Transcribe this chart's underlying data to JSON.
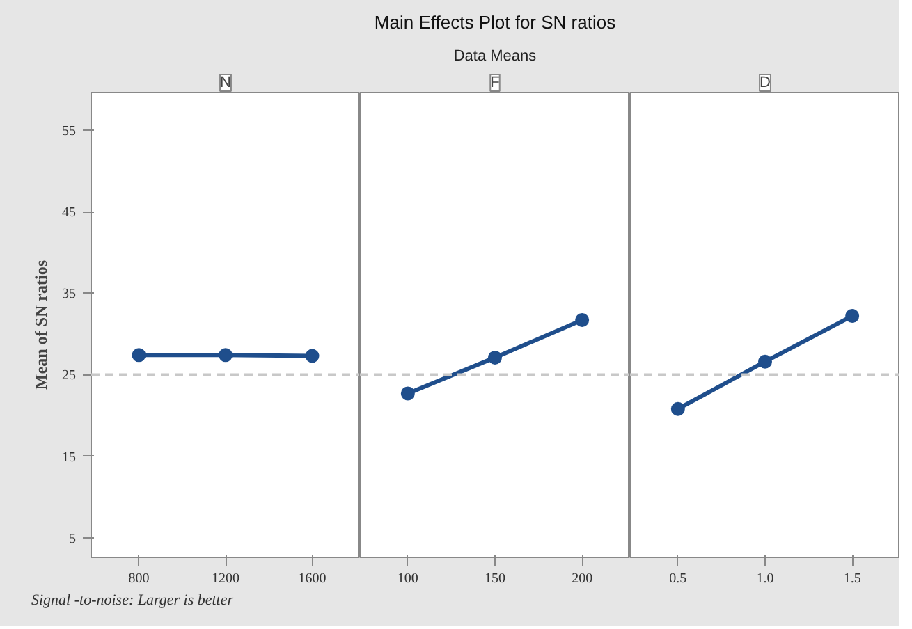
{
  "chart_data": [
    {
      "type": "line",
      "xlabel": "N",
      "ylabel": "Mean of SN ratios",
      "categories": [
        "800",
        "1200",
        "1600"
      ],
      "values": [
        27.4,
        27.4,
        27.3
      ],
      "color": "#1f4e8c",
      "marker": "circle",
      "ylim": [
        2.6,
        59.6
      ],
      "yticks": [
        5,
        15,
        25,
        35,
        45,
        55
      ],
      "ref_lines": [
        {
          "axis": "y",
          "value": 25,
          "color": "#c8c8c8",
          "line_style": "dashed"
        }
      ],
      "grid": false,
      "annotations": [
        "Signal -to-noise: Larger is better"
      ]
    },
    {
      "type": "line",
      "title": "Main Effects Plot for SN ratios",
      "subtitle": "Data Means",
      "xlabel": "F",
      "categories": [
        "100",
        "150",
        "200"
      ],
      "values": [
        22.7,
        27.1,
        31.7
      ],
      "color": "#1f4e8c",
      "marker": "circle",
      "ylim": [
        2.6,
        59.6
      ],
      "yticks": [
        5,
        15,
        25,
        35,
        45,
        55
      ],
      "ref_lines": [
        {
          "axis": "y",
          "value": 25,
          "color": "#c8c8c8",
          "line_style": "dashed"
        }
      ],
      "grid": false,
      "tick_labels": "x"
    },
    {
      "type": "line",
      "xlabel": "D",
      "categories": [
        "0.5",
        "1.0",
        "1.5"
      ],
      "values": [
        20.8,
        26.6,
        32.2
      ],
      "color": "#1f4e8c",
      "marker": "circle",
      "ylim": [
        2.6,
        59.6
      ],
      "yticks": [
        5,
        15,
        25,
        35,
        45,
        55
      ],
      "ref_lines": [
        {
          "axis": "y",
          "value": 25,
          "color": "#c8c8c8",
          "line_style": "dashed"
        }
      ],
      "grid": false,
      "tick_labels": "x"
    }
  ]
}
